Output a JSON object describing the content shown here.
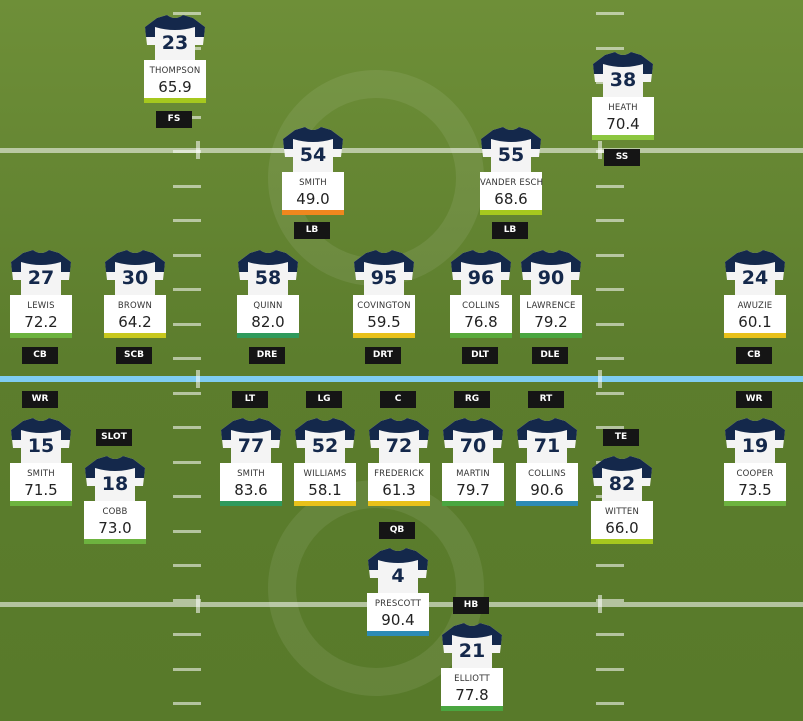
{
  "players": [
    {
      "number": "23",
      "name": "THOMPSON",
      "grade": "65.9",
      "position": "FS",
      "bar_color": "#a6c81e"
    },
    {
      "number": "38",
      "name": "HEATH",
      "grade": "70.4",
      "position": "SS",
      "bar_color": "#8cc63f"
    },
    {
      "number": "54",
      "name": "SMITH",
      "grade": "49.0",
      "position": "LB",
      "bar_color": "#f0871e"
    },
    {
      "number": "55",
      "name": "VANDER ESCH",
      "grade": "68.6",
      "position": "LB",
      "bar_color": "#a6c81e"
    },
    {
      "number": "27",
      "name": "LEWIS",
      "grade": "72.2",
      "position": "CB",
      "bar_color": "#6db33f"
    },
    {
      "number": "30",
      "name": "BROWN",
      "grade": "64.2",
      "position": "SCB",
      "bar_color": "#c8c81e"
    },
    {
      "number": "58",
      "name": "QUINN",
      "grade": "82.0",
      "position": "DRE",
      "bar_color": "#2f9a5c"
    },
    {
      "number": "95",
      "name": "COVINGTON",
      "grade": "59.5",
      "position": "DRT",
      "bar_color": "#e8c11a"
    },
    {
      "number": "96",
      "name": "COLLINS",
      "grade": "76.8",
      "position": "DLT",
      "bar_color": "#5aaa3c"
    },
    {
      "number": "90",
      "name": "LAWRENCE",
      "grade": "79.2",
      "position": "DLE",
      "bar_color": "#4aa640"
    },
    {
      "number": "24",
      "name": "AWUZIE",
      "grade": "60.1",
      "position": "CB",
      "bar_color": "#e8c11a"
    },
    {
      "number": "15",
      "name": "SMITH",
      "grade": "71.5",
      "position": "WR",
      "bar_color": "#6db33f"
    },
    {
      "number": "18",
      "name": "COBB",
      "grade": "73.0",
      "position": "SLOT",
      "bar_color": "#6db33f"
    },
    {
      "number": "77",
      "name": "SMITH",
      "grade": "83.6",
      "position": "LT",
      "bar_color": "#2f9a5c"
    },
    {
      "number": "52",
      "name": "WILLIAMS",
      "grade": "58.1",
      "position": "LG",
      "bar_color": "#e8c11a"
    },
    {
      "number": "72",
      "name": "FREDERICK",
      "grade": "61.3",
      "position": "C",
      "bar_color": "#e8c11a"
    },
    {
      "number": "70",
      "name": "MARTIN",
      "grade": "79.7",
      "position": "RG",
      "bar_color": "#4aa640"
    },
    {
      "number": "71",
      "name": "COLLINS",
      "grade": "90.6",
      "position": "RT",
      "bar_color": "#2d8bb5"
    },
    {
      "number": "82",
      "name": "WITTEN",
      "grade": "66.0",
      "position": "TE",
      "bar_color": "#a6c81e"
    },
    {
      "number": "19",
      "name": "COOPER",
      "grade": "73.5",
      "position": "WR",
      "bar_color": "#6db33f"
    },
    {
      "number": "4",
      "name": "PRESCOTT",
      "grade": "90.4",
      "position": "QB",
      "bar_color": "#2d8bb5"
    },
    {
      "number": "21",
      "name": "ELLIOTT",
      "grade": "77.8",
      "position": "HB",
      "bar_color": "#4aa640"
    }
  ]
}
